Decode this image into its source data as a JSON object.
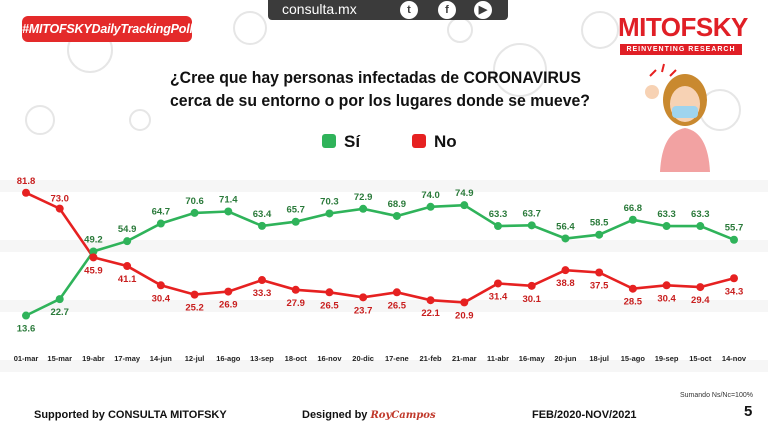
{
  "header": {
    "tag": "#MITOFSKYDailyTrackingPoll",
    "site": "consulta.mx",
    "brand": "MITOFSKY",
    "brand_sub": "REINVENTING RESEARCH",
    "social_icons": [
      "twitter-icon",
      "facebook-icon",
      "youtube-icon"
    ]
  },
  "question": "¿Cree que hay personas infectadas de CORONAVIRUS cerca de su entorno o por los lugares donde se mueve?",
  "legend": [
    {
      "label": "Sí",
      "color": "#2fb35a"
    },
    {
      "label": "No",
      "color": "#e62121"
    }
  ],
  "chart_data": {
    "type": "line",
    "categories": [
      "01-mar",
      "15-mar",
      "19-abr",
      "17-may",
      "14-jun",
      "12-jul",
      "16-ago",
      "13-sep",
      "18-oct",
      "16-nov",
      "20-dic",
      "17-ene",
      "21-feb",
      "21-mar",
      "11-abr",
      "16-may",
      "20-jun",
      "18-jul",
      "15-ago",
      "19-sep",
      "15-oct",
      "14-nov"
    ],
    "series": [
      {
        "name": "Sí",
        "color": "#2fb35a",
        "values": [
          13.6,
          22.7,
          49.2,
          54.9,
          64.7,
          70.6,
          71.4,
          63.4,
          65.7,
          70.3,
          72.9,
          68.9,
          74.0,
          74.9,
          63.3,
          63.7,
          56.4,
          58.5,
          66.8,
          63.3,
          63.3,
          55.7
        ]
      },
      {
        "name": "No",
        "color": "#e62121",
        "values": [
          81.8,
          73.0,
          45.9,
          41.1,
          30.4,
          25.2,
          26.9,
          33.3,
          27.9,
          26.5,
          23.7,
          26.5,
          22.1,
          20.9,
          31.4,
          30.1,
          38.8,
          37.5,
          28.5,
          30.4,
          29.4,
          34.3
        ]
      }
    ],
    "labels": {
      "Sí": [
        "13.6",
        "22.7",
        "49.2",
        "54.9",
        "64.7",
        "70.6",
        "71.4",
        "63.4",
        "65.7",
        "70.3",
        "72.9",
        "68.9",
        "74.0",
        "74.9",
        "63.3",
        "63.7",
        "56.4",
        "58.5",
        "66.8",
        "63.3",
        "63.3",
        "55.7"
      ],
      "No": [
        "81.8",
        "73.0",
        "45.9",
        "41.1",
        "30.4",
        "25.2",
        "26.9",
        "33.3",
        "27.9",
        "26.5",
        "23.7",
        "26.5",
        "22.1",
        "20.9",
        "31.4",
        "30.1",
        "38.8",
        "37.5",
        "28.5",
        "30.4",
        "29.4",
        "34.3"
      ]
    },
    "ylim": [
      0,
      100
    ],
    "grid": false
  },
  "footer": {
    "supported": "Supported by   CONSULTA   MITOFSKY",
    "designed": "Designed by",
    "signature": "RoyCampos",
    "period": "FEB/2020-NOV/2021",
    "page": "5",
    "note": "Sumando Ns/Nc=100%"
  }
}
